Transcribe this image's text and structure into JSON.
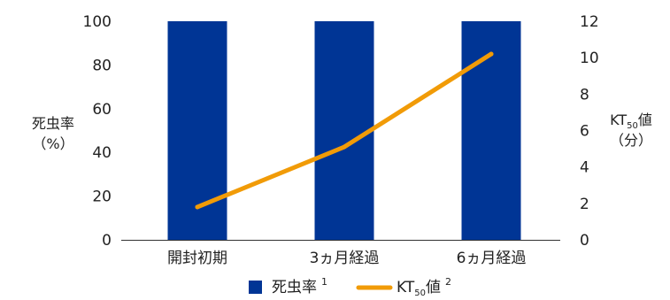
{
  "chart_data": {
    "type": "bar",
    "categories": [
      "開封初期",
      "3ヵ月経過",
      "6ヵ月経過"
    ],
    "series": [
      {
        "name": "死虫率",
        "type": "bar",
        "axis": "left",
        "color": "#003595",
        "values": [
          100,
          100,
          100
        ],
        "footnote": "1"
      },
      {
        "name": "KT50値",
        "type": "line",
        "axis": "right",
        "color": "#F19B07",
        "values": [
          1.8,
          5.1,
          10.2
        ],
        "footnote": "2"
      }
    ],
    "y_left": {
      "title_lines": [
        "死虫率",
        "（%）"
      ],
      "ylim": [
        0,
        100
      ],
      "ticks": [
        "0",
        "20",
        "40",
        "60",
        "80",
        "100"
      ]
    },
    "y_right": {
      "title_main": "KT",
      "title_sub": "50",
      "title_tail": "値",
      "title_line2": "（分）",
      "ylim": [
        0,
        12
      ],
      "ticks": [
        "0",
        "2",
        "4",
        "6",
        "8",
        "10",
        "12"
      ]
    },
    "legend": {
      "placement": "bottom-center",
      "items": [
        {
          "label": "死虫率",
          "sup": "1"
        },
        {
          "label_main": "KT",
          "label_sub": "50",
          "label_tail": "値",
          "sup": "2"
        }
      ]
    },
    "grid": false
  }
}
